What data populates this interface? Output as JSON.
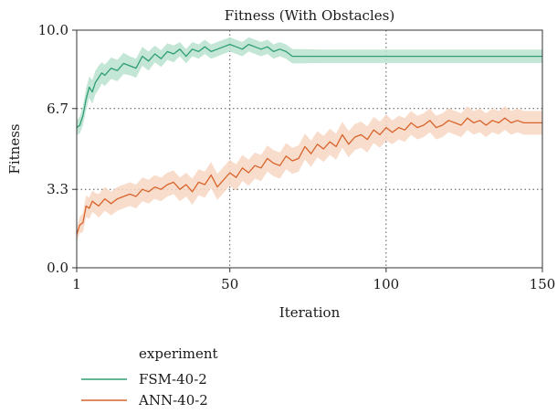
{
  "chart_data": {
    "type": "line",
    "title": "Fitness (With Obstacles)",
    "xlabel": "Iteration",
    "ylabel": "Fitness",
    "xlim": [
      1,
      150
    ],
    "ylim": [
      0.0,
      10.0
    ],
    "x_ticks": [
      1,
      50,
      100,
      150
    ],
    "y_ticks": [
      0.0,
      3.3,
      6.7,
      10.0
    ],
    "y_tick_labels": [
      "0.0",
      "3.3",
      "6.7",
      "10.0"
    ],
    "grid": "dotted at inner ticks",
    "legend": {
      "title": "experiment",
      "placement": "below plot, left"
    },
    "series": [
      {
        "name": "FSM-40-2",
        "color": "#2e9e74",
        "band_color": "#b9e2cf",
        "x": [
          1,
          2,
          3,
          4,
          5,
          6,
          7,
          8,
          9,
          10,
          12,
          14,
          16,
          18,
          20,
          22,
          24,
          26,
          28,
          30,
          32,
          34,
          36,
          38,
          40,
          42,
          44,
          46,
          48,
          50,
          52,
          54,
          56,
          58,
          60,
          62,
          64,
          66,
          68,
          70,
          72,
          80,
          100,
          120,
          150
        ],
        "values": [
          5.9,
          6.0,
          6.4,
          7.1,
          7.6,
          7.4,
          7.8,
          8.0,
          8.2,
          8.1,
          8.4,
          8.3,
          8.6,
          8.5,
          8.4,
          8.9,
          8.7,
          9.0,
          8.8,
          9.1,
          9.0,
          9.2,
          8.9,
          9.2,
          9.1,
          9.3,
          9.1,
          9.2,
          9.3,
          9.4,
          9.3,
          9.2,
          9.4,
          9.3,
          9.2,
          9.3,
          9.1,
          9.2,
          9.1,
          8.9,
          8.9,
          8.9,
          8.9,
          8.9,
          8.9
        ],
        "band": [
          0.3,
          0.35,
          0.4,
          0.45,
          0.45,
          0.5,
          0.5,
          0.5,
          0.45,
          0.45,
          0.45,
          0.45,
          0.45,
          0.4,
          0.4,
          0.4,
          0.4,
          0.35,
          0.35,
          0.35,
          0.35,
          0.3,
          0.3,
          0.3,
          0.3,
          0.3,
          0.3,
          0.3,
          0.3,
          0.3,
          0.3,
          0.3,
          0.3,
          0.3,
          0.3,
          0.3,
          0.3,
          0.3,
          0.3,
          0.3,
          0.3,
          0.28,
          0.28,
          0.28,
          0.28
        ]
      },
      {
        "name": "ANN-40-2",
        "color": "#d9632a",
        "band_color": "#f8d7c3",
        "x": [
          1,
          2,
          3,
          4,
          5,
          6,
          7,
          8,
          10,
          12,
          14,
          16,
          18,
          20,
          22,
          24,
          26,
          28,
          30,
          32,
          34,
          36,
          38,
          40,
          42,
          44,
          46,
          48,
          50,
          52,
          54,
          56,
          58,
          60,
          62,
          64,
          66,
          68,
          70,
          72,
          74,
          76,
          78,
          80,
          82,
          84,
          86,
          88,
          90,
          92,
          94,
          96,
          98,
          100,
          102,
          104,
          106,
          108,
          110,
          112,
          114,
          116,
          118,
          120,
          122,
          124,
          126,
          128,
          130,
          132,
          134,
          136,
          138,
          140,
          142,
          144,
          146,
          148,
          150
        ],
        "values": [
          1.4,
          1.8,
          1.9,
          2.6,
          2.5,
          2.8,
          2.7,
          2.6,
          2.9,
          2.7,
          2.9,
          3.0,
          3.1,
          3.0,
          3.3,
          3.2,
          3.4,
          3.3,
          3.5,
          3.6,
          3.3,
          3.5,
          3.2,
          3.6,
          3.5,
          3.9,
          3.4,
          3.7,
          4.0,
          3.8,
          4.2,
          4.0,
          4.3,
          4.2,
          4.6,
          4.4,
          4.3,
          4.7,
          4.5,
          4.6,
          5.1,
          4.8,
          5.2,
          5.0,
          5.3,
          5.1,
          5.6,
          5.2,
          5.5,
          5.6,
          5.4,
          5.8,
          5.6,
          5.9,
          5.7,
          5.9,
          5.8,
          6.1,
          5.9,
          6.0,
          6.2,
          5.9,
          6.0,
          6.2,
          6.1,
          6.0,
          6.3,
          6.1,
          6.2,
          6.0,
          6.2,
          6.1,
          6.3,
          6.1,
          6.2,
          6.1,
          6.1,
          6.1,
          6.1
        ],
        "band": [
          0.3,
          0.35,
          0.4,
          0.45,
          0.45,
          0.45,
          0.45,
          0.5,
          0.5,
          0.5,
          0.5,
          0.5,
          0.5,
          0.5,
          0.5,
          0.5,
          0.5,
          0.5,
          0.5,
          0.5,
          0.5,
          0.5,
          0.55,
          0.55,
          0.55,
          0.55,
          0.55,
          0.55,
          0.55,
          0.55,
          0.55,
          0.55,
          0.55,
          0.55,
          0.55,
          0.55,
          0.55,
          0.55,
          0.55,
          0.55,
          0.55,
          0.55,
          0.55,
          0.55,
          0.55,
          0.55,
          0.55,
          0.55,
          0.55,
          0.55,
          0.55,
          0.55,
          0.55,
          0.55,
          0.5,
          0.5,
          0.5,
          0.5,
          0.5,
          0.5,
          0.5,
          0.5,
          0.5,
          0.5,
          0.5,
          0.5,
          0.5,
          0.5,
          0.5,
          0.5,
          0.5,
          0.5,
          0.5,
          0.5,
          0.5,
          0.5,
          0.5,
          0.5,
          0.5
        ]
      }
    ]
  }
}
